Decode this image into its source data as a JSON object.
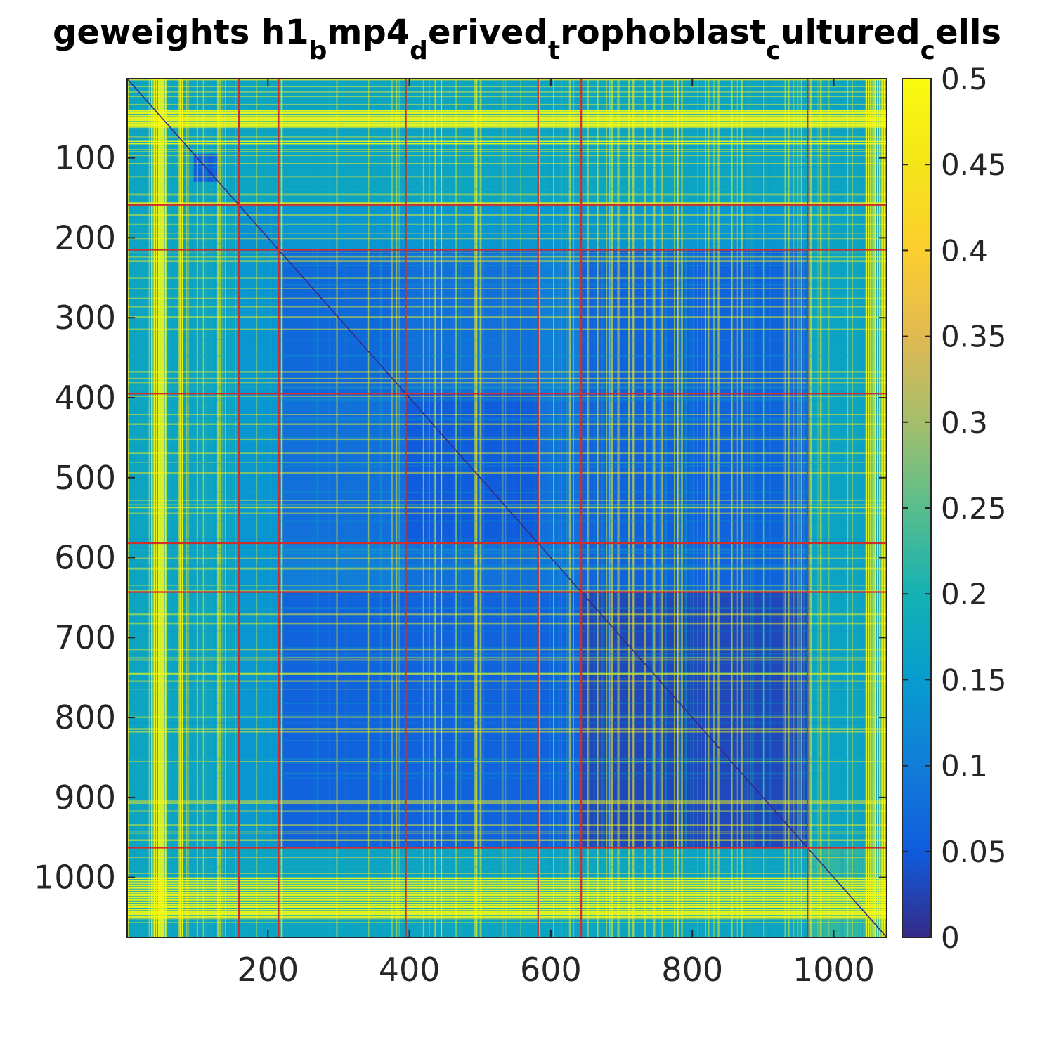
{
  "chart_data": {
    "type": "heatmap",
    "title": {
      "parts": [
        {
          "text": "geweights h1",
          "sub": false
        },
        {
          "text": "b",
          "sub": true
        },
        {
          "text": "mp4",
          "sub": false
        },
        {
          "text": "d",
          "sub": true
        },
        {
          "text": "erived",
          "sub": false
        },
        {
          "text": "t",
          "sub": true
        },
        {
          "text": "rophoblast",
          "sub": false
        },
        {
          "text": "c",
          "sub": true
        },
        {
          "text": "ultured",
          "sub": false
        },
        {
          "text": "c",
          "sub": true
        },
        {
          "text": "ells",
          "sub": false
        }
      ]
    },
    "xlabel": "",
    "ylabel": "",
    "xlim": [
      1,
      1075
    ],
    "ylim": [
      1,
      1075
    ],
    "y_reversed": true,
    "x_ticks": [
      200,
      400,
      600,
      800,
      1000
    ],
    "x_tick_labels": [
      "200",
      "400",
      "600",
      "800",
      "1000"
    ],
    "y_ticks": [
      100,
      200,
      300,
      400,
      500,
      600,
      700,
      800,
      900,
      1000
    ],
    "y_tick_labels": [
      "100",
      "200",
      "300",
      "400",
      "500",
      "600",
      "700",
      "800",
      "900",
      "1000"
    ],
    "colorbar": {
      "range": [
        0,
        0.5
      ],
      "ticks": [
        0,
        0.05,
        0.1,
        0.15,
        0.2,
        0.25,
        0.3,
        0.35,
        0.4,
        0.45,
        0.5
      ],
      "tick_labels": [
        "0",
        "0.05",
        "0.1",
        "0.15",
        "0.2",
        "0.25",
        "0.3",
        "0.35",
        "0.4",
        "0.45",
        "0.5"
      ],
      "colormap": "parula",
      "placement": "right"
    },
    "cluster_boundaries": [
      159,
      215,
      395,
      582,
      643,
      963
    ],
    "boundary_color": "#d22d2d",
    "blocks": [
      {
        "range": [
          1,
          159
        ],
        "within_value": 0.17
      },
      {
        "range": [
          159,
          215
        ],
        "within_value": 0.13
      },
      {
        "range": [
          215,
          395
        ],
        "within_value": 0.07
      },
      {
        "range": [
          395,
          582
        ],
        "within_value": 0.05
      },
      {
        "range": [
          582,
          643
        ],
        "within_value": 0.09
      },
      {
        "range": [
          643,
          963
        ],
        "within_value": 0.03
      },
      {
        "range": [
          963,
          1075
        ],
        "within_value": 0.22
      }
    ],
    "sub_block": {
      "range": [
        95,
        130
      ],
      "value": 0.05
    },
    "high_value_column_bands": [
      [
        35,
        55
      ],
      [
        75,
        80
      ],
      [
        1045,
        1075
      ]
    ],
    "high_value_row_bands": [
      [
        40,
        60
      ],
      [
        78,
        84
      ],
      [
        1000,
        1050
      ]
    ],
    "diagonal_value": 0
  }
}
